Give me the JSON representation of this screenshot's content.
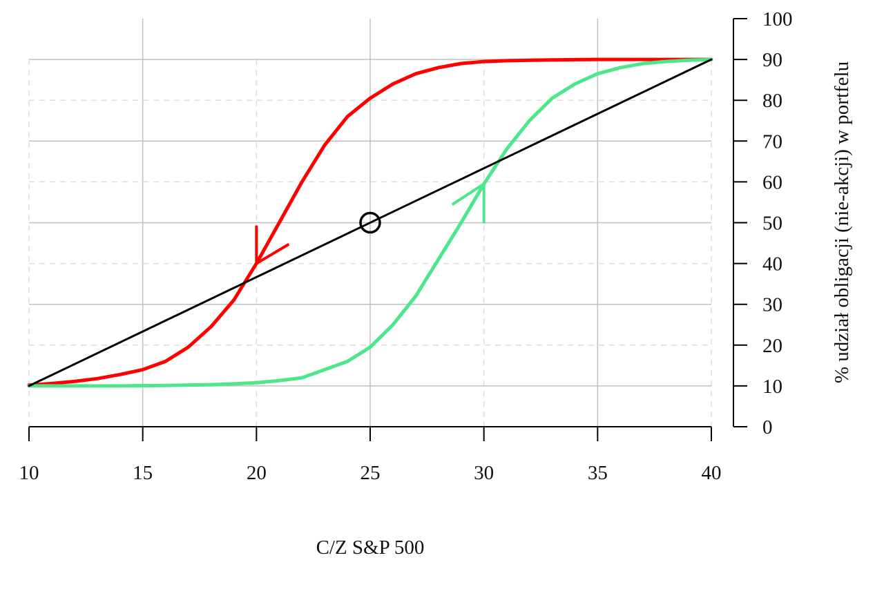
{
  "chart_data": {
    "type": "line",
    "title": "",
    "xlabel": "C/Z S&P 500",
    "ylabel": "% udział obligacji (nie-akcji) w portfelu",
    "xlim": [
      10,
      40
    ],
    "ylim": [
      0,
      100
    ],
    "x_ticks": [
      10,
      15,
      20,
      25,
      30,
      35,
      40
    ],
    "y_ticks": [
      0,
      10,
      20,
      30,
      40,
      50,
      60,
      70,
      80,
      90,
      100
    ],
    "y_axis_position": "right",
    "grid": {
      "major": true,
      "minor_dashed": true
    },
    "legend": null,
    "series": [
      {
        "name": "red-curve-falling-path",
        "color": "#ff0000",
        "direction_arrow": {
          "x": 20,
          "y": 40,
          "direction": "down-left"
        },
        "x": [
          10,
          11,
          12,
          13,
          14,
          15,
          16,
          17,
          18,
          19,
          20,
          21,
          22,
          23,
          24,
          25,
          26,
          27,
          28,
          29,
          30,
          31,
          32,
          33,
          34,
          35,
          36,
          37,
          38,
          39,
          40
        ],
        "y": [
          10.2,
          10.6,
          11.1,
          11.8,
          12.8,
          14,
          16,
          19.5,
          24.5,
          31,
          40,
          50,
          60,
          69,
          76,
          80.5,
          84,
          86.5,
          88,
          89,
          89.5,
          89.7,
          89.8,
          89.9,
          89.95,
          90,
          90,
          90,
          90,
          90,
          90
        ]
      },
      {
        "name": "green-curve-rising-path",
        "color": "#4ee68a",
        "direction_arrow": {
          "x": 30,
          "y": 59.5,
          "direction": "up-right"
        },
        "x": [
          10,
          12,
          14,
          16,
          18,
          19,
          20,
          21,
          22,
          23,
          24,
          25,
          26,
          27,
          28,
          29,
          30,
          31,
          32,
          33,
          34,
          35,
          36,
          37,
          38,
          39,
          40
        ],
        "y": [
          10,
          10,
          10,
          10.1,
          10.3,
          10.5,
          10.8,
          11.3,
          12,
          14,
          16,
          19.5,
          25,
          32,
          41,
          50,
          59.5,
          68,
          75,
          80.5,
          84,
          86.5,
          88,
          89,
          89.5,
          89.8,
          90
        ]
      },
      {
        "name": "black-linear-line",
        "color": "#000000",
        "x": [
          10,
          40
        ],
        "y": [
          10,
          90
        ]
      }
    ],
    "annotations": [
      {
        "type": "circle-marker",
        "x": 25,
        "y": 50,
        "color": "#000000"
      }
    ]
  },
  "labels": {
    "xlabel": "C/Z S&P 500",
    "ylabel": "% udział obligacji (nie-akcji) w portfelu",
    "x_ticks": [
      "10",
      "15",
      "20",
      "25",
      "30",
      "35",
      "40"
    ],
    "y_ticks": [
      "0",
      "10",
      "20",
      "30",
      "40",
      "50",
      "60",
      "70",
      "80",
      "90",
      "100"
    ]
  },
  "colors": {
    "red": "#ff0000",
    "green": "#4ee68a",
    "black": "#000000",
    "grid_major": "#c0c0c0",
    "grid_minor": "#dddddd"
  }
}
